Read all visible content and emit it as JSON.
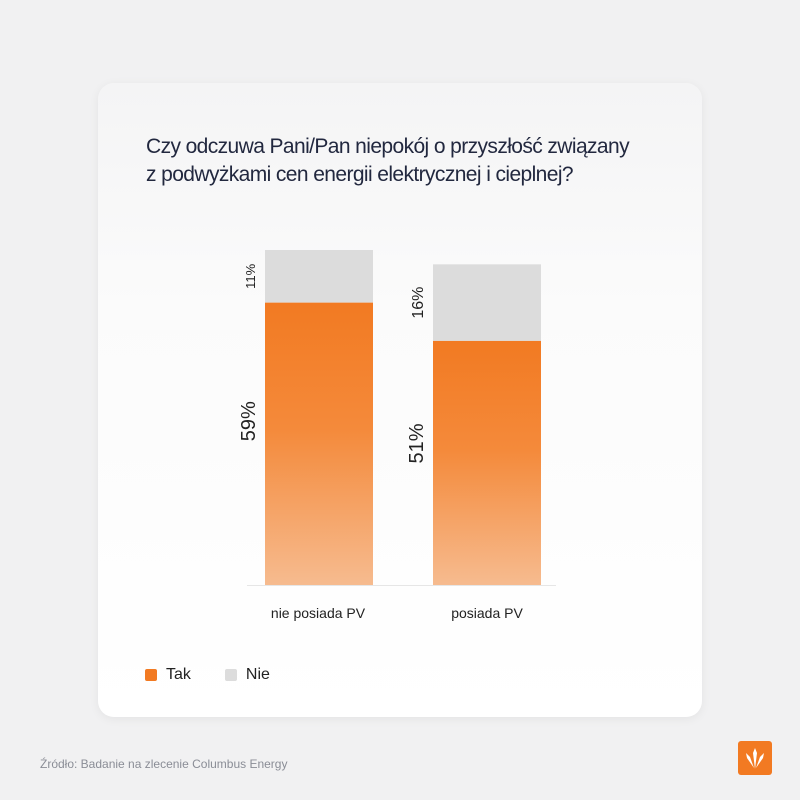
{
  "chart_data": {
    "type": "bar",
    "stacked": true,
    "title": [
      "Czy odczuwa Pani/Pan niepokój o przyszłość związany",
      "z podwyżkami cen energii elektrycznej i cieplnej?"
    ],
    "categories": [
      "nie posiada PV",
      "posiada PV"
    ],
    "series": [
      {
        "name": "Tak",
        "values": [
          59,
          51
        ],
        "labels": [
          "59%",
          "51%"
        ],
        "color": "#f27a22"
      },
      {
        "name": "Nie",
        "values": [
          11,
          16
        ],
        "labels": [
          "11%",
          "16%"
        ],
        "color": "#dcdcdc"
      }
    ],
    "ylim": [
      0,
      70
    ],
    "grid": false,
    "legend_position": "bottom-left"
  },
  "legend": {
    "tak": "Tak",
    "nie": "Nie"
  },
  "colors": {
    "tak": "#f27a22",
    "nie": "#dcdcdc",
    "logo": "#f27a22"
  },
  "source": "Źródło: Badanie na zlecenie Columbus Energy",
  "logo_icon": "columbus-energy-logo-icon"
}
